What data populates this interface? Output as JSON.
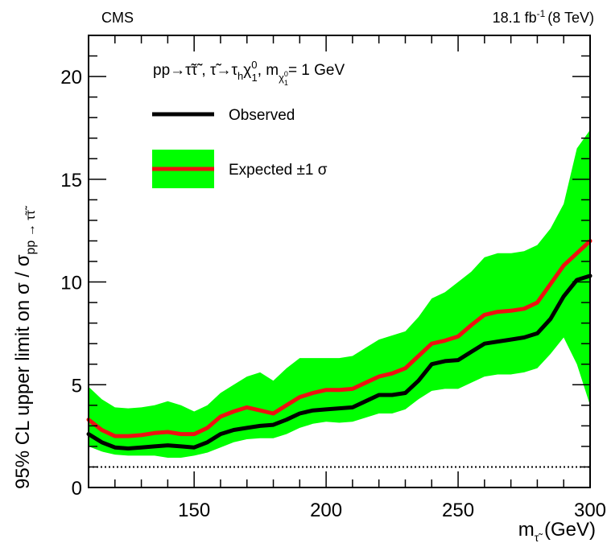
{
  "chart_data": {
    "type": "line",
    "experiment_label": "CMS",
    "luminosity_label": {
      "value": "18.1 fb",
      "superscript": "-1",
      "energy": "(8 TeV)"
    },
    "process_label": {
      "prefix": "pp→τ̃τ̃ , τ̃→τ",
      "sub_h": "h",
      "chi": "χ",
      "chi_sup": "0",
      "chi_sub": "1",
      "mass_part": ", m",
      "mass_sub": "χ",
      "mass_sub_sup": "0",
      "mass_sub_sub": "1",
      "mass_value": "= 1 GeV"
    },
    "legend": {
      "observed": "Observed",
      "expected": "Expected ±1 σ"
    },
    "xlabel": {
      "main": "m",
      "sub": "τ̃",
      "unit": " (GeV)"
    },
    "ylabel": {
      "main": "95% CL upper limit on  σ / σ",
      "sub": "pp → τ̃τ̃"
    },
    "xlim": [
      110,
      300
    ],
    "ylim": [
      0,
      22
    ],
    "xticks": [
      150,
      200,
      250,
      300
    ],
    "yticks": [
      0,
      5,
      10,
      15,
      20
    ],
    "x": [
      110,
      115,
      120,
      125,
      130,
      135,
      140,
      145,
      150,
      155,
      160,
      165,
      170,
      175,
      180,
      185,
      190,
      195,
      200,
      205,
      210,
      215,
      220,
      225,
      230,
      235,
      240,
      245,
      250,
      255,
      260,
      265,
      270,
      275,
      280,
      285,
      290,
      295,
      300
    ],
    "series": [
      {
        "name": "Observed",
        "color": "#000000",
        "values": [
          2.6,
          2.2,
          1.95,
          1.9,
          1.95,
          2.0,
          2.05,
          2.0,
          1.95,
          2.2,
          2.6,
          2.8,
          2.9,
          3.0,
          3.05,
          3.3,
          3.6,
          3.75,
          3.8,
          3.85,
          3.9,
          4.2,
          4.5,
          4.5,
          4.6,
          5.2,
          6.0,
          6.15,
          6.2,
          6.6,
          7.0,
          7.1,
          7.2,
          7.3,
          7.5,
          8.2,
          9.3,
          10.1,
          10.3
        ]
      },
      {
        "name": "Expected",
        "color": "#ee1111",
        "values": [
          3.3,
          2.8,
          2.5,
          2.5,
          2.55,
          2.65,
          2.7,
          2.6,
          2.6,
          2.9,
          3.45,
          3.7,
          3.9,
          3.75,
          3.6,
          4.0,
          4.4,
          4.6,
          4.75,
          4.75,
          4.8,
          5.1,
          5.4,
          5.55,
          5.8,
          6.4,
          7.0,
          7.15,
          7.35,
          7.9,
          8.4,
          8.55,
          8.6,
          8.7,
          9.0,
          9.9,
          10.8,
          11.4,
          12.0
        ]
      }
    ],
    "band_1sigma": {
      "color": "#00ff00",
      "upper": [
        4.9,
        4.3,
        3.9,
        3.85,
        3.9,
        4.0,
        4.2,
        4.0,
        3.7,
        4.0,
        4.6,
        5.0,
        5.4,
        5.6,
        5.2,
        5.8,
        6.3,
        6.3,
        6.3,
        6.3,
        6.4,
        6.8,
        7.2,
        7.4,
        7.6,
        8.3,
        9.2,
        9.5,
        10.0,
        10.5,
        11.2,
        11.4,
        11.4,
        11.5,
        11.8,
        12.6,
        13.8,
        16.5,
        17.4
      ],
      "lower": [
        2.0,
        1.75,
        1.6,
        1.55,
        1.55,
        1.55,
        1.45,
        1.45,
        1.55,
        1.7,
        1.95,
        2.2,
        2.35,
        2.4,
        2.4,
        2.6,
        2.9,
        3.1,
        3.2,
        3.15,
        3.2,
        3.4,
        3.6,
        3.6,
        3.8,
        4.3,
        4.7,
        4.8,
        4.8,
        5.1,
        5.4,
        5.5,
        5.5,
        5.6,
        5.8,
        6.5,
        7.3,
        6.0,
        4.0
      ]
    },
    "reference_line": {
      "y": 1,
      "style": "dotted"
    },
    "grid": false,
    "legend_placement": "top-left"
  }
}
